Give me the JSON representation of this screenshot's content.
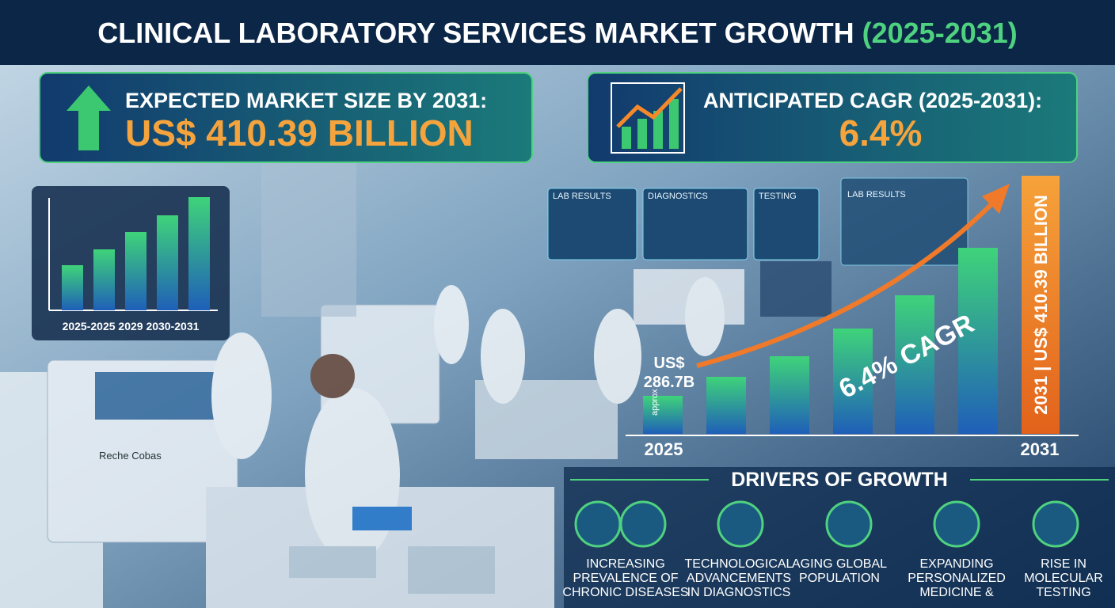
{
  "title": "CLINICAL LABORATORY SERVICES MARKET GROWTH",
  "title_years": "(2025-2031)",
  "cards": [
    {
      "label": "EXPECTED MARKET SIZE BY 2031:",
      "value": "US$ 410.39 BILLION"
    },
    {
      "label": "ANTICIPATED CAGR (2025-2031):",
      "value": "6.4%"
    }
  ],
  "small_chart": {
    "axis_label": "2025-2025 2029 2030-2031"
  },
  "screens": [
    "LAB RESULTS",
    "DIAGNOSTICS",
    "TESTING",
    "LAB RESULTS"
  ],
  "machine_label": "Reche Cobas",
  "main_chart": {
    "start_label": [
      "US$",
      "286.7B"
    ],
    "approx": "approx",
    "cagr_label": "6.4% CAGR",
    "end_label": "2031 | US$ 410.39 BILLION",
    "x_start": "2025",
    "x_end": "2031"
  },
  "drivers": {
    "heading": "DRIVERS OF GROWTH",
    "items": [
      [
        "INCREASING",
        "PREVALENCE OF",
        "CHRONIC DISEASES"
      ],
      [
        "TECHNOLOGICAL",
        "ADVANCEMENTS",
        "IN DIAGNOSTICS"
      ],
      [
        "AGING GLOBAL",
        "POPULATION"
      ],
      [
        "EXPANDING",
        "PERSONALIZED",
        "MEDICINE &"
      ],
      [
        "RISE IN",
        "MOLECULAR",
        "TESTING"
      ]
    ]
  }
}
